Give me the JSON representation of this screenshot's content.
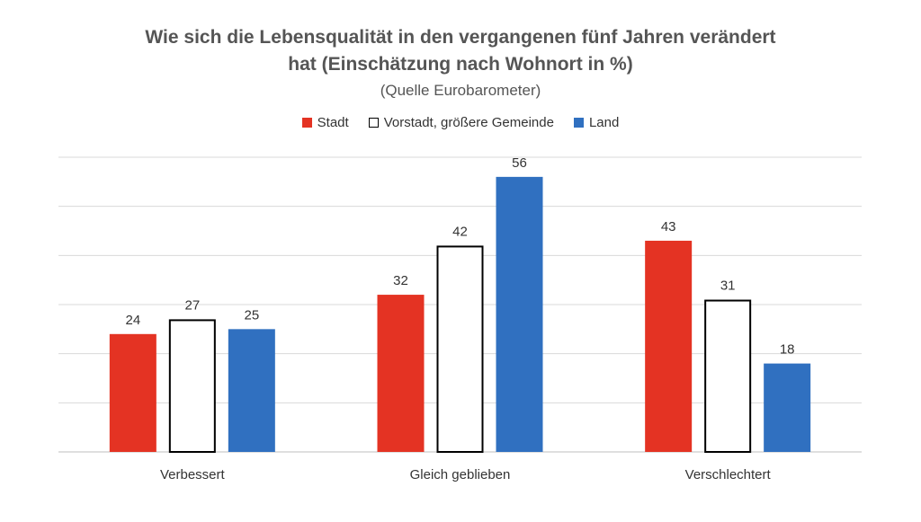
{
  "chart_data": {
    "type": "bar",
    "title_line1": "Wie sich die Lebensqualität in den vergangenen fünf Jahren verändert",
    "title_line2": "hat (Einschätzung nach Wohnort in %)",
    "subtitle": "(Quelle Eurobarometer)",
    "categories": [
      "Verbessert",
      "Gleich geblieben",
      "Verschlechtert"
    ],
    "series": [
      {
        "name": "Stadt",
        "values": [
          24,
          32,
          43
        ],
        "color": "#E43323",
        "stroke": "#E43323"
      },
      {
        "name": "Vorstadt, größere Gemeinde",
        "values": [
          27,
          42,
          31
        ],
        "color": "#FFFFFF",
        "stroke": "#000000"
      },
      {
        "name": "Land",
        "values": [
          25,
          56,
          18
        ],
        "color": "#3070C0",
        "stroke": "#3070C0"
      }
    ],
    "ylim": [
      0,
      60
    ],
    "grid": true,
    "legend_position": "top"
  }
}
